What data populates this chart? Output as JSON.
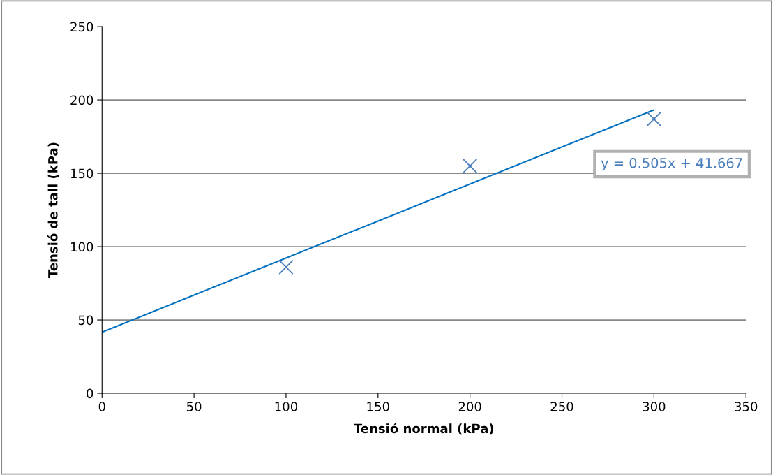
{
  "chart_data": {
    "type": "scatter",
    "xlabel": "Tensió normal (kPa)",
    "ylabel": "Tensió de tall (kPa)",
    "x": [
      100,
      200,
      300
    ],
    "series": [
      {
        "color": "#4a7ebb",
        "values": [
          86,
          155,
          187
        ],
        "marker": "cross"
      },
      {
        "type": "line",
        "color": "#0070c0",
        "x": [
          0,
          300
        ],
        "values": [
          41.7,
          193.2
        ],
        "marker": "none",
        "line_style": "solid"
      }
    ],
    "annotations": [
      "y = 0.505x + 41.667"
    ],
    "xlim": [
      0,
      350
    ],
    "xticks": [
      0,
      50,
      100,
      150,
      200,
      250,
      300,
      350
    ],
    "ylim": [
      0,
      250
    ],
    "yticks": [
      0,
      50,
      100,
      150,
      200,
      250
    ],
    "grid": "y",
    "legend": false
  }
}
